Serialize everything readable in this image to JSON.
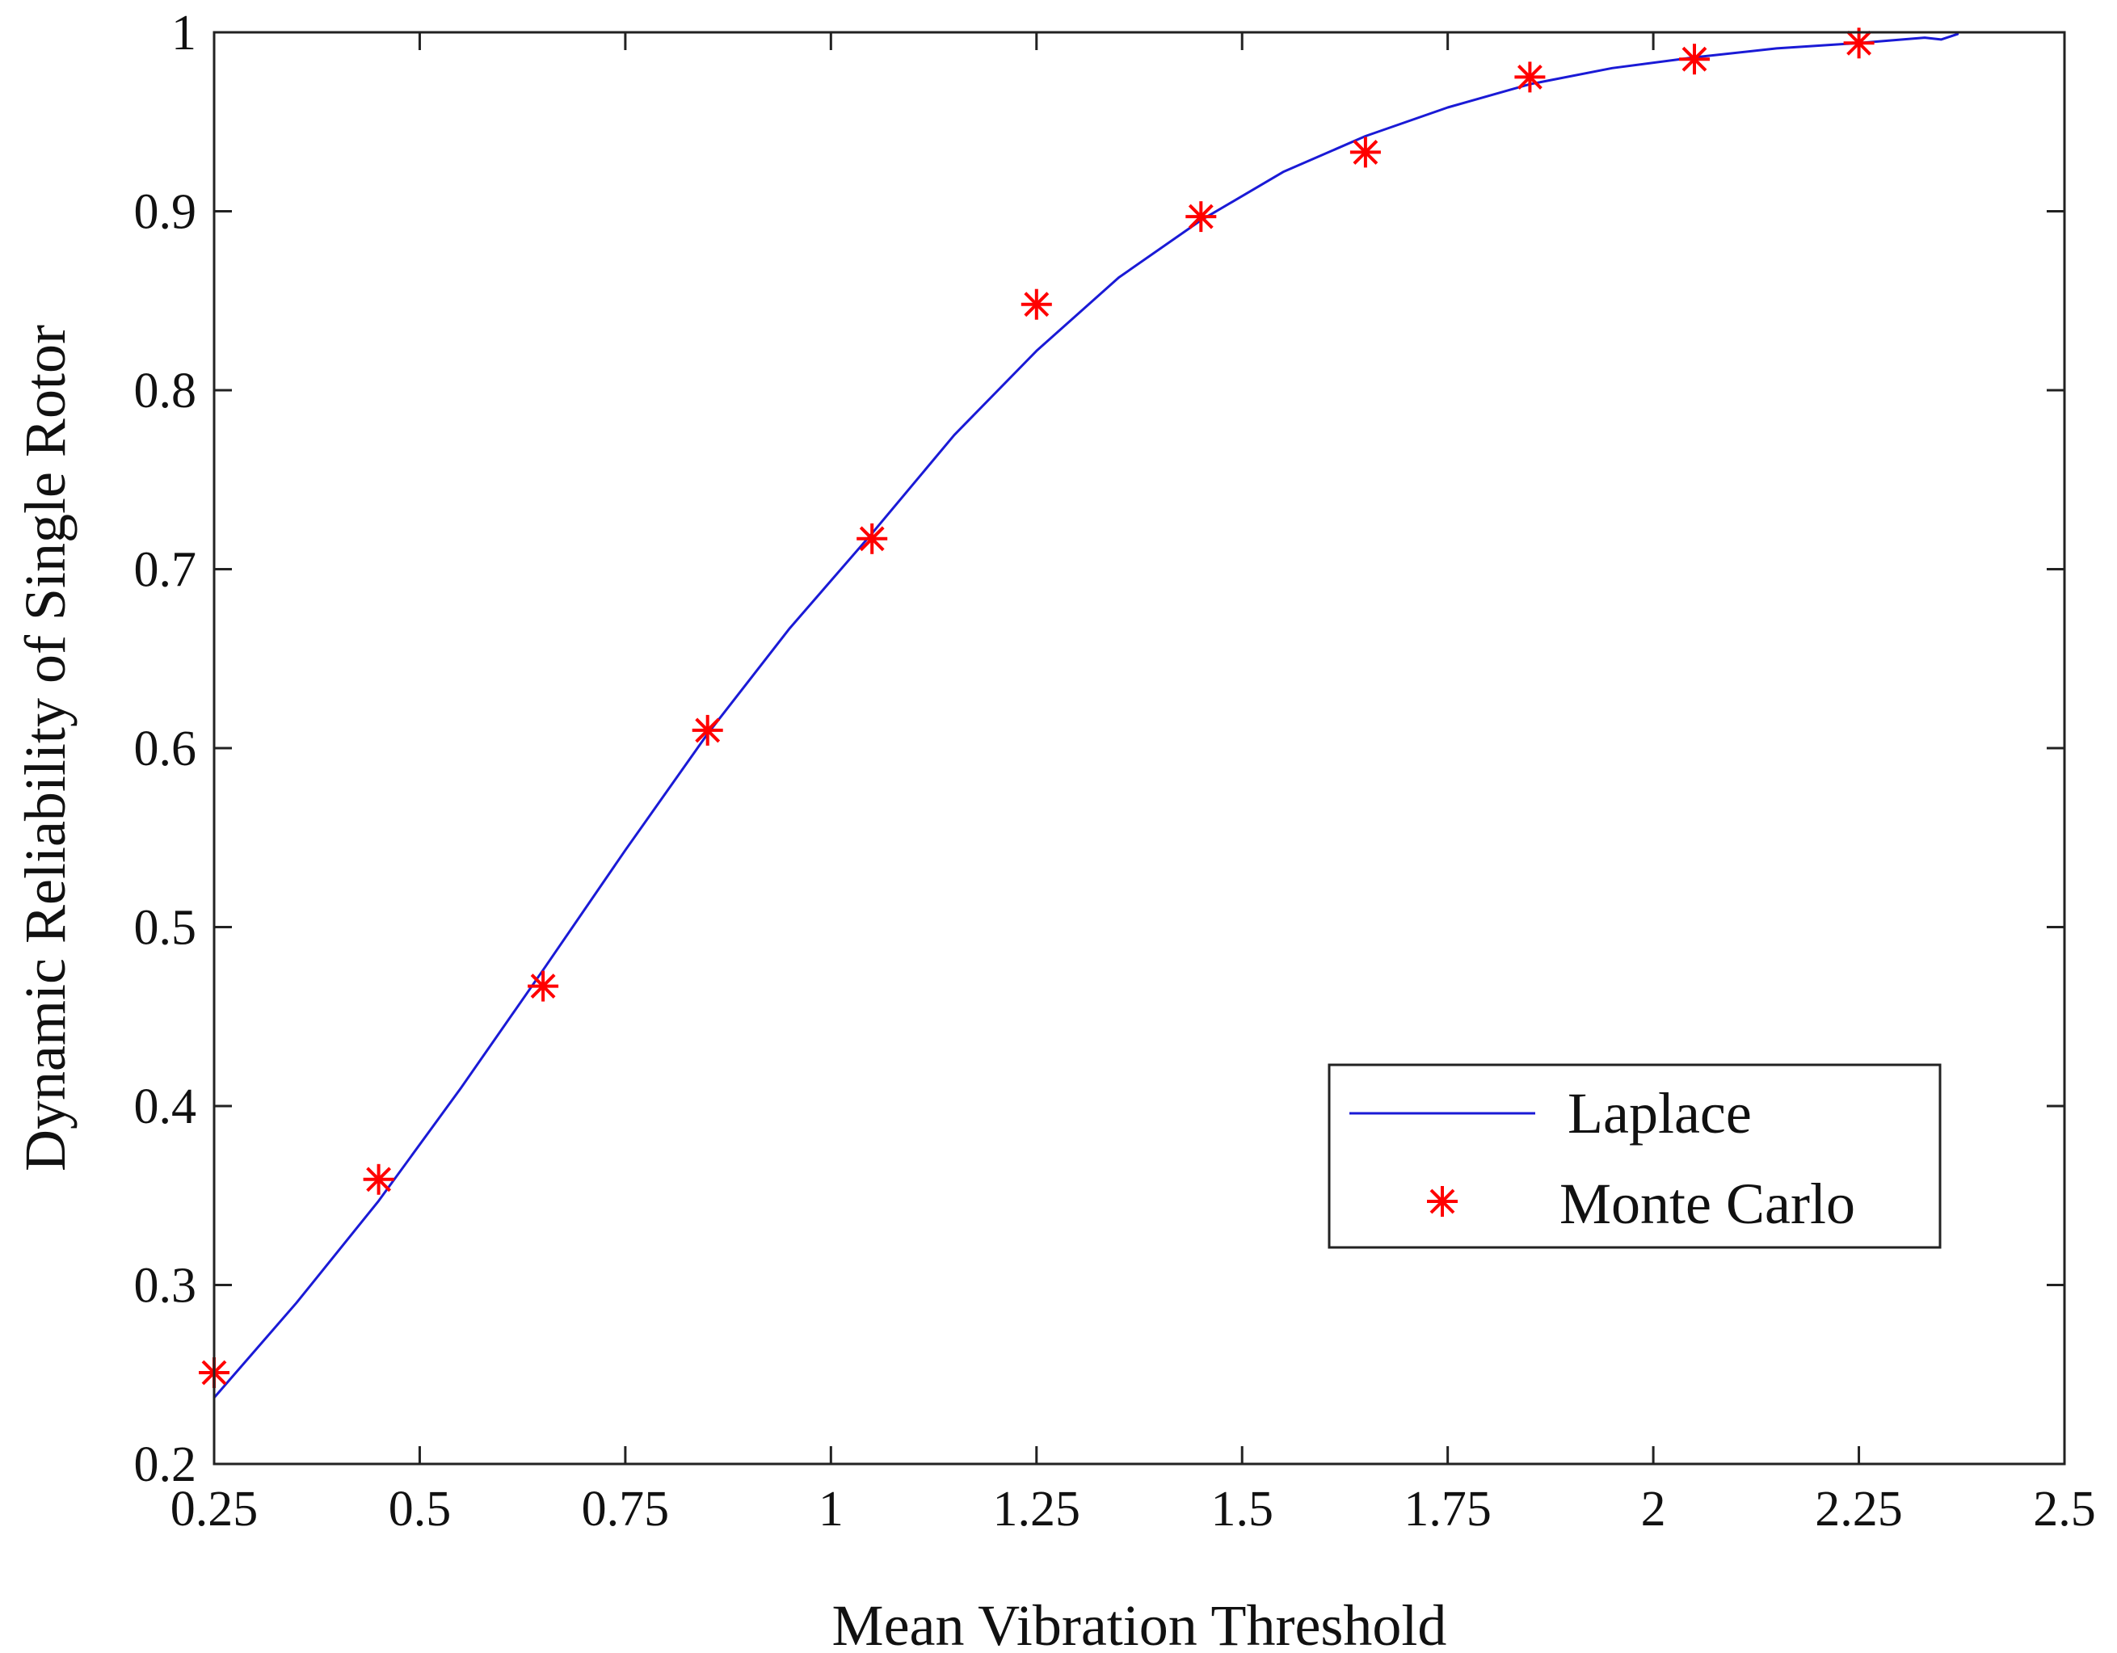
{
  "chart_data": {
    "type": "line",
    "title": "",
    "xlabel": "Mean Vibration Threshold",
    "ylabel": "Dynamic Reliability of Single Rotor",
    "xlim": [
      0.25,
      2.5
    ],
    "ylim": [
      0.2,
      1.0
    ],
    "xticks": [
      "0.25",
      "0.5",
      "0.75",
      "1",
      "1.25",
      "1.5",
      "1.75",
      "2",
      "2.25",
      "2.5"
    ],
    "yticks": [
      "0.2",
      "0.3",
      "0.4",
      "0.5",
      "0.6",
      "0.7",
      "0.8",
      "0.9",
      "1"
    ],
    "legend_position": "lower-right",
    "series": [
      {
        "name": "Laplace",
        "style": "line",
        "color": "#1a1ad6",
        "x": [
          0.25,
          0.35,
          0.45,
          0.55,
          0.65,
          0.75,
          0.85,
          0.95,
          1.05,
          1.15,
          1.25,
          1.35,
          1.45,
          1.55,
          1.65,
          1.75,
          1.85,
          1.95,
          2.05,
          2.15,
          2.25,
          2.33,
          2.35,
          2.37
        ],
        "y": [
          0.237,
          0.29,
          0.347,
          0.41,
          0.476,
          0.543,
          0.608,
          0.667,
          0.72,
          0.775,
          0.822,
          0.863,
          0.895,
          0.922,
          0.942,
          0.958,
          0.971,
          0.98,
          0.986,
          0.991,
          0.994,
          0.997,
          0.996,
          0.999
        ]
      },
      {
        "name": "Monte Carlo",
        "style": "marker",
        "marker": "asterisk",
        "color": "#ff0000",
        "x": [
          0.25,
          0.45,
          0.65,
          0.85,
          1.05,
          1.25,
          1.45,
          1.65,
          1.85,
          2.05,
          2.25
        ],
        "y": [
          0.251,
          0.359,
          0.467,
          0.61,
          0.717,
          0.848,
          0.897,
          0.933,
          0.975,
          0.985,
          0.994
        ]
      }
    ]
  }
}
